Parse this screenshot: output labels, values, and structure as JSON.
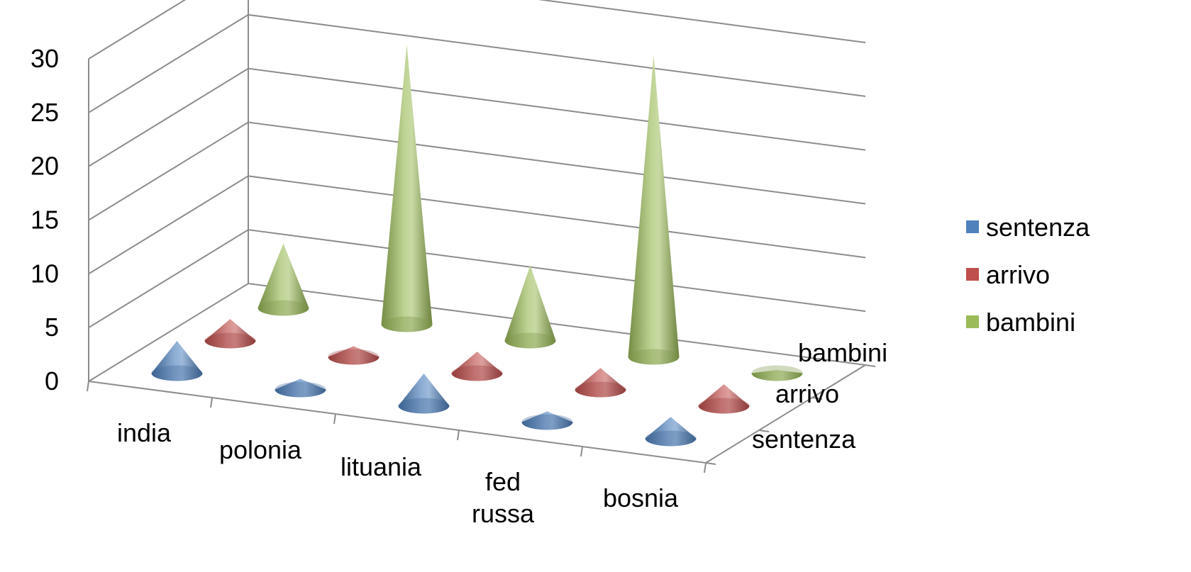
{
  "chart_data": {
    "type": "bar",
    "subtype": "3d-cone",
    "title": "",
    "xlabel": "",
    "ylabel": "",
    "categories": [
      "india",
      "polonia",
      "lituania",
      "fed russa",
      "bosnia"
    ],
    "category_lines": [
      [
        "india"
      ],
      [
        "polonia"
      ],
      [
        "lituania"
      ],
      [
        "fed",
        "russa"
      ],
      [
        "bosnia"
      ]
    ],
    "series": [
      {
        "name": "sentenza",
        "values": [
          3,
          1,
          3,
          1,
          2
        ],
        "color": "#4f81bd"
      },
      {
        "name": "arrivo",
        "values": [
          2,
          1,
          2,
          2,
          2
        ],
        "color": "#c0504d"
      },
      {
        "name": "bambini",
        "values": [
          6,
          26,
          7,
          28,
          0.3
        ],
        "color": "#9bbb59"
      }
    ],
    "depth_labels": [
      "sentenza",
      "arrivo",
      "bambini"
    ],
    "ylim": [
      0,
      30
    ],
    "yticks": [
      0,
      5,
      10,
      15,
      20,
      25,
      30
    ],
    "gridlines": true,
    "legend": {
      "position": "right",
      "entries": [
        "sentenza",
        "arrivo",
        "bambini"
      ]
    }
  }
}
